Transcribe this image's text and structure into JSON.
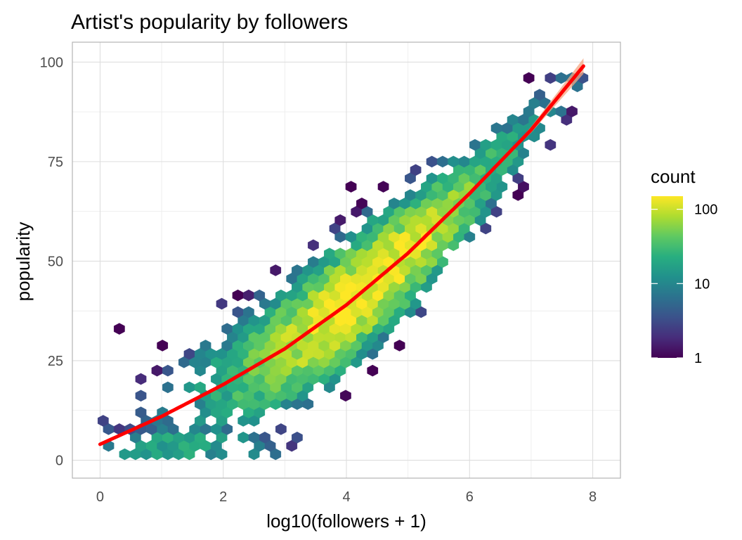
{
  "chart_data": {
    "type": "heatmap",
    "subtype": "hexbin",
    "title": "Artist's popularity by followers",
    "xlabel": "log10(followers + 1)",
    "ylabel": "popularity",
    "xlim": [
      -0.45,
      8.45
    ],
    "ylim": [
      -4.5,
      105
    ],
    "x_ticks": [
      0,
      2,
      4,
      6,
      8
    ],
    "y_ticks": [
      0,
      25,
      50,
      75,
      100
    ],
    "grid": true,
    "legend": {
      "title": "count",
      "position": "right",
      "scale": "log10",
      "ticks": [
        1,
        10,
        100
      ],
      "range": [
        1,
        150
      ],
      "colors": [
        "#440154",
        "#472d7b",
        "#3b528b",
        "#2c728e",
        "#21918c",
        "#28ae80",
        "#5ec962",
        "#addc30",
        "#fde725"
      ]
    },
    "density_model": {
      "description": "Hexagon counts concentrated along the trend curve; higher density near x 3.5-5.5",
      "density_peak_count": 150
    },
    "trend": {
      "color": "#ff0000",
      "ribbon_color": "#f4a582",
      "points": [
        {
          "x": 0.0,
          "y": 4
        },
        {
          "x": 1.0,
          "y": 11
        },
        {
          "x": 2.0,
          "y": 19
        },
        {
          "x": 3.0,
          "y": 28
        },
        {
          "x": 4.0,
          "y": 39
        },
        {
          "x": 5.0,
          "y": 52
        },
        {
          "x": 6.0,
          "y": 67
        },
        {
          "x": 7.0,
          "y": 83
        },
        {
          "x": 7.85,
          "y": 99
        }
      ]
    }
  }
}
